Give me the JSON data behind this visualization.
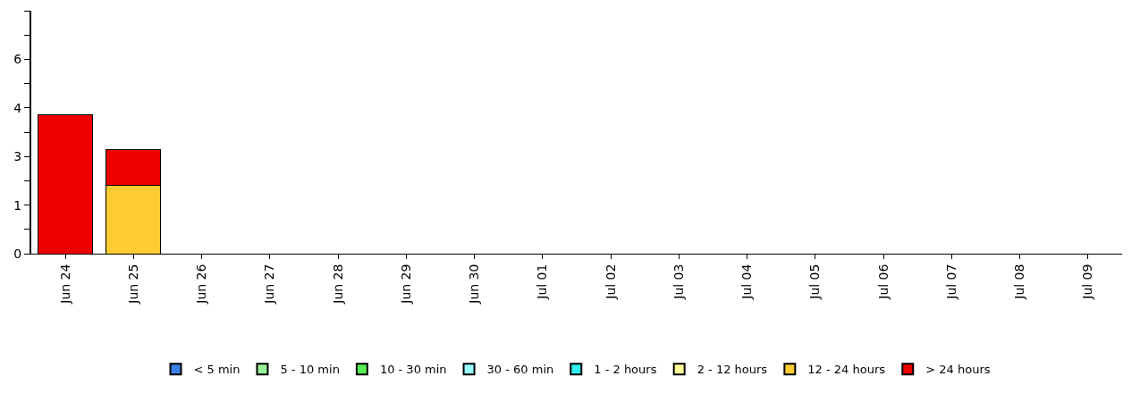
{
  "chart_data": {
    "type": "bar",
    "stacked": true,
    "categories": [
      "Jun 24",
      "Jun 25",
      "Jun 26",
      "Jun 27",
      "Jun 28",
      "Jun 29",
      "Jun 30",
      "Jul 01",
      "Jul 02",
      "Jul 03",
      "Jul 04",
      "Jul 05",
      "Jul 06",
      "Jul 07",
      "Jul 08",
      "Jul 09"
    ],
    "series": [
      {
        "name": "< 5 min",
        "color": "#3a80e8",
        "values": [
          0,
          0,
          0,
          0,
          0,
          0,
          0,
          0,
          0,
          0,
          0,
          0,
          0,
          0,
          0,
          0
        ]
      },
      {
        "name": "5 - 10 min",
        "color": "#99ee99",
        "values": [
          0,
          0,
          0,
          0,
          0,
          0,
          0,
          0,
          0,
          0,
          0,
          0,
          0,
          0,
          0,
          0
        ]
      },
      {
        "name": "10 - 30 min",
        "color": "#55ee55",
        "values": [
          0,
          0,
          0,
          0,
          0,
          0,
          0,
          0,
          0,
          0,
          0,
          0,
          0,
          0,
          0,
          0
        ]
      },
      {
        "name": "30 - 60 min",
        "color": "#99ffff",
        "values": [
          0,
          0,
          0,
          0,
          0,
          0,
          0,
          0,
          0,
          0,
          0,
          0,
          0,
          0,
          0,
          0
        ]
      },
      {
        "name": "1 - 2 hours",
        "color": "#33eeee",
        "values": [
          0,
          0,
          0,
          0,
          0,
          0,
          0,
          0,
          0,
          0,
          0,
          0,
          0,
          0,
          0,
          0
        ]
      },
      {
        "name": "2 - 12 hours",
        "color": "#ffff99",
        "values": [
          0,
          0,
          0,
          0,
          0,
          0,
          0,
          0,
          0,
          0,
          0,
          0,
          0,
          0,
          0,
          0
        ]
      },
      {
        "name": "12 - 24 hours",
        "color": "#ffcc33",
        "values": [
          0,
          2.1,
          0,
          0,
          0,
          0,
          0,
          0,
          0,
          0,
          0,
          0,
          0,
          0,
          0,
          0
        ]
      },
      {
        "name": "> 24 hours",
        "color": "#ee0000",
        "values": [
          4.3,
          1.1,
          0,
          0,
          0,
          0,
          0,
          0,
          0,
          0,
          0,
          0,
          0,
          0,
          0,
          0
        ]
      }
    ],
    "ylim": [
      0,
      7.5
    ],
    "yticks": [
      0,
      {
        "value": 0.75,
        "label": null
      },
      {
        "value": 1.5,
        "label": "1"
      },
      {
        "value": 2.25,
        "label": null
      },
      3,
      {
        "value": 3.75,
        "label": null
      },
      {
        "value": 4.5,
        "label": "4"
      },
      {
        "value": 5.25,
        "label": null
      },
      6,
      {
        "value": 6.75,
        "label": null
      },
      {
        "value": 7.5,
        "label": null
      }
    ],
    "legend": "bottom"
  }
}
